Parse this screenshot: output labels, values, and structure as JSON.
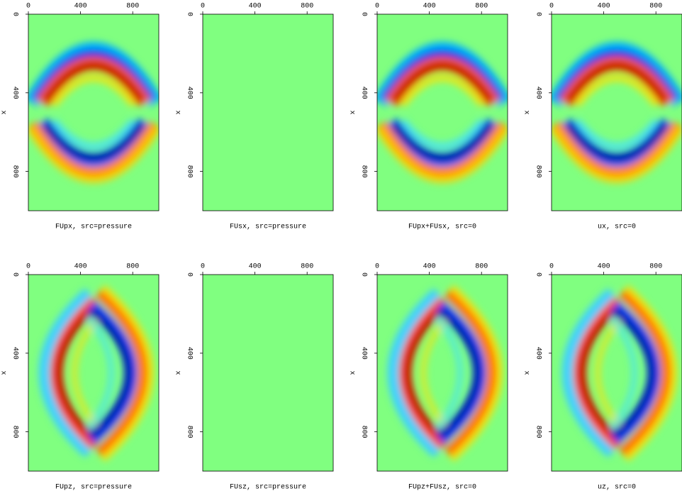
{
  "chart_data": [
    {
      "type": "heatmap",
      "title": "FUpx, src=pressure",
      "ylabel": "x",
      "xlim": [
        0,
        1000
      ],
      "ylim": [
        0,
        1000
      ],
      "xticks": [
        0,
        400,
        800
      ],
      "yticks": [
        0,
        400,
        800
      ]
    },
    {
      "type": "heatmap",
      "title": "FUsx, src=pressure",
      "ylabel": "x",
      "xlim": [
        0,
        1000
      ],
      "ylim": [
        0,
        1000
      ],
      "xticks": [
        0,
        400,
        800
      ],
      "yticks": [
        0,
        400,
        800
      ]
    },
    {
      "type": "heatmap",
      "title": "FUpx+FUsx, src=0",
      "ylabel": "x",
      "xlim": [
        0,
        1000
      ],
      "ylim": [
        0,
        1000
      ],
      "xticks": [
        0,
        400,
        800
      ],
      "yticks": [
        0,
        400,
        800
      ]
    },
    {
      "type": "heatmap",
      "title": "ux, src=0",
      "ylabel": "x",
      "xlim": [
        0,
        1000
      ],
      "ylim": [
        0,
        1000
      ],
      "xticks": [
        0,
        400,
        800
      ],
      "yticks": [
        0,
        400,
        800
      ]
    },
    {
      "type": "heatmap",
      "title": "FUpz, src=pressure",
      "ylabel": "x",
      "xlim": [
        0,
        1000
      ],
      "ylim": [
        0,
        1000
      ],
      "xticks": [
        0,
        400,
        800
      ],
      "yticks": [
        0,
        400,
        800
      ]
    },
    {
      "type": "heatmap",
      "title": "FUsz, src=pressure",
      "ylabel": "x",
      "xlim": [
        0,
        1000
      ],
      "ylim": [
        0,
        1000
      ],
      "xticks": [
        0,
        400,
        800
      ],
      "yticks": [
        0,
        400,
        800
      ]
    },
    {
      "type": "heatmap",
      "title": "FUpz+FUsz, src=0",
      "ylabel": "x",
      "xlim": [
        0,
        1000
      ],
      "ylim": [
        0,
        1000
      ],
      "xticks": [
        0,
        400,
        800
      ],
      "yticks": [
        0,
        400,
        800
      ]
    },
    {
      "type": "heatmap",
      "title": "uz, src=0",
      "ylabel": "x",
      "xlim": [
        0,
        1000
      ],
      "ylim": [
        0,
        1000
      ],
      "xticks": [
        0,
        400,
        800
      ],
      "yticks": [
        0,
        400,
        800
      ]
    }
  ]
}
